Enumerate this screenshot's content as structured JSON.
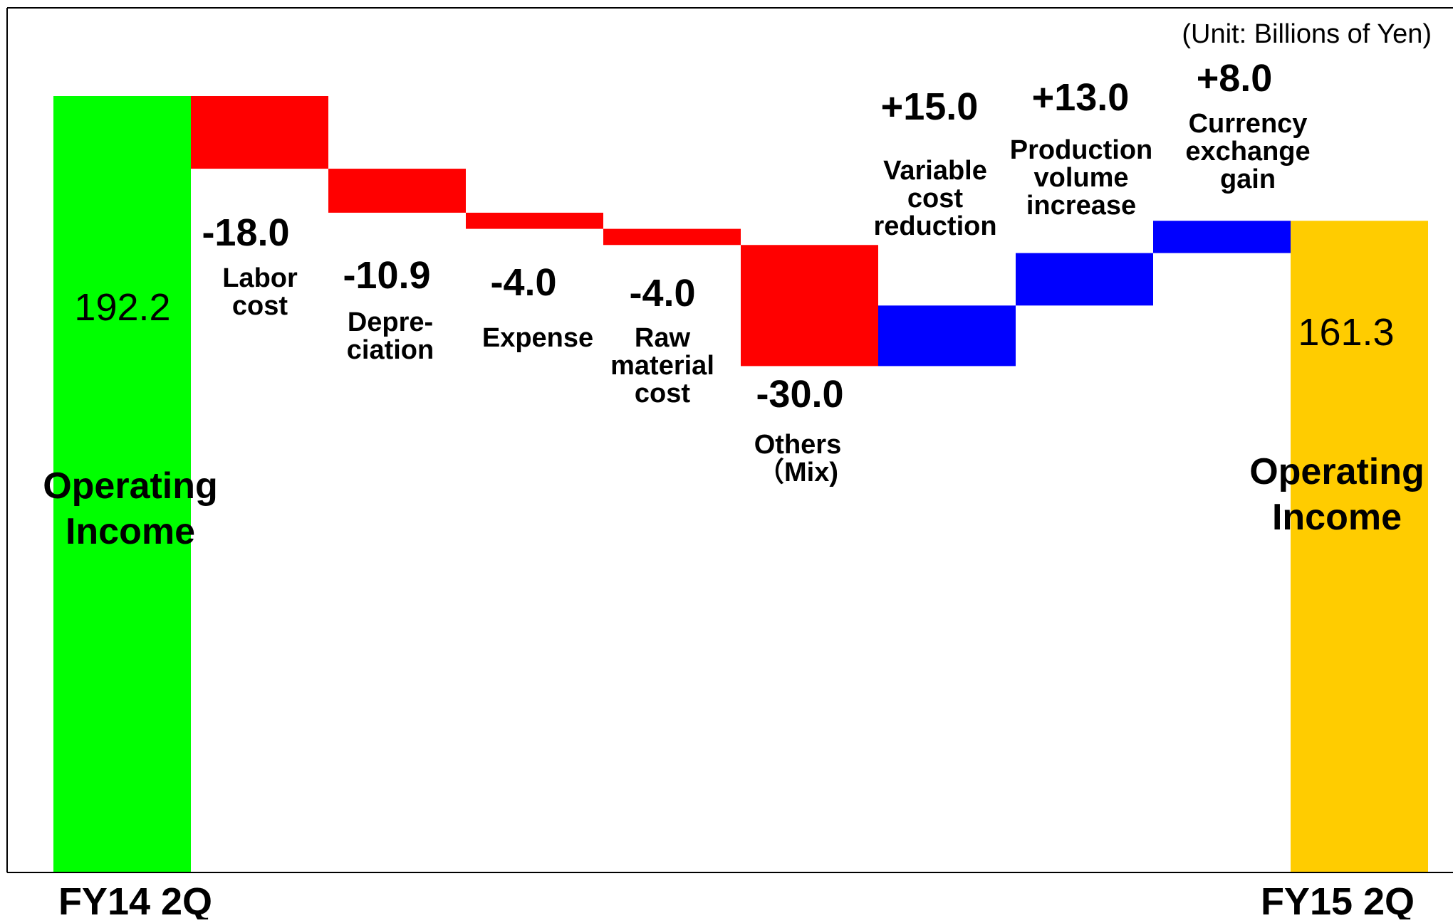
{
  "chart_data": {
    "type": "waterfall",
    "unit_label": "(Unit: Billions of Yen)",
    "start": {
      "period": "FY14 2Q",
      "value": 192.2,
      "value_label": "192.2",
      "label_lines": [
        "Operating",
        "Income"
      ],
      "color": "#00ff00"
    },
    "end": {
      "period": "FY15 2Q",
      "value": 161.3,
      "value_label": "161.3",
      "label_lines": [
        "Operating",
        "Income"
      ],
      "color": "#ffcc00"
    },
    "negative_color": "#ff0000",
    "positive_color": "#0000ff",
    "steps": [
      {
        "value": -18.0,
        "value_label": "-18.0",
        "label_lines": [
          "Labor",
          "cost"
        ]
      },
      {
        "value": -10.9,
        "value_label": "-10.9",
        "label_lines": [
          "Depre-",
          "ciation"
        ]
      },
      {
        "value": -4.0,
        "value_label": "-4.0",
        "label_lines": [
          "Expense"
        ]
      },
      {
        "value": -4.0,
        "value_label": "-4.0",
        "label_lines": [
          "Raw",
          "material",
          "cost"
        ]
      },
      {
        "value": -30.0,
        "value_label": "-30.0",
        "label_lines": [
          "Others",
          "（Mix)"
        ]
      },
      {
        "value": 15.0,
        "value_label": "+15.0",
        "label_lines": [
          "Variable",
          "cost",
          "reduction"
        ]
      },
      {
        "value": 13.0,
        "value_label": "+13.0",
        "label_lines": [
          "Production",
          "volume",
          "increase"
        ]
      },
      {
        "value": 8.0,
        "value_label": "+8.0",
        "label_lines": [
          "Currency",
          "exchange",
          "gain"
        ]
      }
    ]
  }
}
